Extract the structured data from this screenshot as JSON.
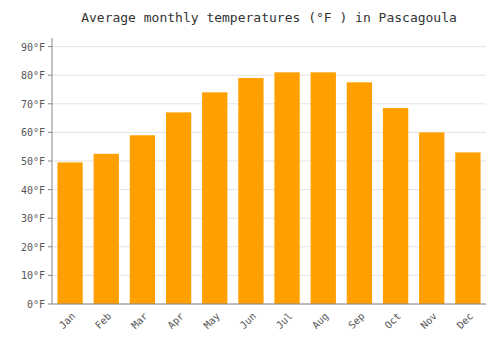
{
  "chart_data": {
    "type": "bar",
    "title": "Average monthly temperatures (°F ) in Pascagoula",
    "categories": [
      "Jan",
      "Feb",
      "Mar",
      "Apr",
      "May",
      "Jun",
      "Jul",
      "Aug",
      "Sep",
      "Oct",
      "Nov",
      "Dec"
    ],
    "values": [
      49.5,
      52.5,
      59,
      67,
      74,
      79,
      81,
      81,
      77.5,
      68.5,
      60,
      53
    ],
    "color": "#FFA000",
    "ylim": [
      0,
      93
    ],
    "yticks": [
      {
        "value": 0,
        "label": "0°F"
      },
      {
        "value": 10,
        "label": "10°F"
      },
      {
        "value": 20,
        "label": "20°F"
      },
      {
        "value": 30,
        "label": "30°F"
      },
      {
        "value": 40,
        "label": "40°F"
      },
      {
        "value": 50,
        "label": "50°F"
      },
      {
        "value": 60,
        "label": "60°F"
      },
      {
        "value": 70,
        "label": "70°F"
      },
      {
        "value": 80,
        "label": "80°F"
      },
      {
        "value": 90,
        "label": "90°F"
      }
    ],
    "grid": true
  }
}
